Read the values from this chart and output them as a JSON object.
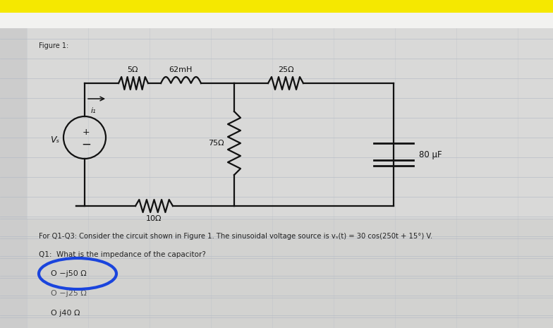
{
  "bg_outer": "#c8c8c8",
  "bg_white_strip": "#f0f0f0",
  "bg_paper": "#d8d8d8",
  "top_bar_color": "#f5e800",
  "figure_label": "Figure 1:",
  "grid_line_color": "#b8bfc8",
  "text_color": "#222222",
  "circuit_color": "#111111",
  "blue_circle_color": "#1a44dd",
  "question_text": "For Q1-Q3: Consider the circuit shown in Figure 1. The sinusoidal voltage source is vₛ(t) = 30 cos(250t + 15°) V.",
  "q1_text": "Q1:  What is the impedance of the capacitor?",
  "opt1": "O −j50 Ω",
  "opt2": "O −j25 Ω",
  "opt3": "O j40 Ω",
  "r5": "5Ω",
  "ind": "62mH",
  "r25": "25Ω",
  "r75": "75Ω",
  "r10": "10Ω",
  "cap": "80 μF",
  "vs": "Vₛ",
  "i1": "i₁"
}
